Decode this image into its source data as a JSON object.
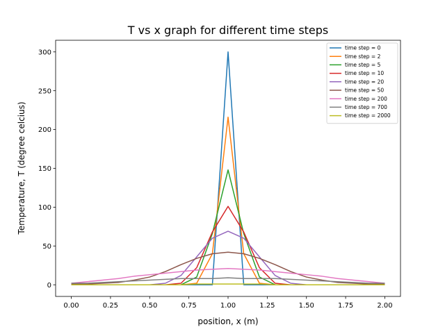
{
  "chart_data": {
    "type": "line",
    "title": "T vs x graph for different time steps",
    "xlabel": "position, x (m)",
    "ylabel": "Temperature, T (degree celcius)",
    "xlim": [
      -0.1,
      2.1
    ],
    "ylim": [
      -15,
      315
    ],
    "xticks": [
      "0.00",
      "0.25",
      "0.50",
      "0.75",
      "1.00",
      "1.25",
      "1.50",
      "1.75",
      "2.00"
    ],
    "yticks": [
      "0",
      "50",
      "100",
      "150",
      "200",
      "250",
      "300"
    ],
    "grid": false,
    "legend_position": "top-right",
    "x": [
      0.0,
      0.1,
      0.2,
      0.3,
      0.4,
      0.5,
      0.6,
      0.7,
      0.8,
      0.9,
      1.0,
      1.1,
      1.2,
      1.3,
      1.4,
      1.5,
      1.6,
      1.7,
      1.8,
      1.9,
      2.0
    ],
    "series": [
      {
        "name": "time step = 0",
        "color": "#1f77b4",
        "values": [
          0,
          0,
          0,
          0,
          0,
          0,
          0,
          0,
          0,
          0,
          300,
          0,
          0,
          0,
          0,
          0,
          0,
          0,
          0,
          0,
          0
        ]
      },
      {
        "name": "time step = 2",
        "color": "#ff7f0e",
        "values": [
          0,
          0,
          0,
          0,
          0,
          0,
          0,
          0,
          2,
          40,
          216,
          40,
          2,
          0,
          0,
          0,
          0,
          0,
          0,
          0,
          0
        ]
      },
      {
        "name": "time step = 5",
        "color": "#2ca02c",
        "values": [
          0,
          0,
          0,
          0,
          0,
          0,
          0,
          0,
          10,
          66,
          148,
          66,
          10,
          0,
          0,
          0,
          0,
          0,
          0,
          0,
          0
        ]
      },
      {
        "name": "time step = 10",
        "color": "#d62728",
        "values": [
          0,
          0,
          0,
          0,
          0,
          0,
          0,
          2,
          22,
          68,
          101,
          68,
          22,
          2,
          0,
          0,
          0,
          0,
          0,
          0,
          0
        ]
      },
      {
        "name": "time step = 20",
        "color": "#9467bd",
        "values": [
          0,
          0,
          0,
          0,
          0,
          0,
          2,
          12,
          36,
          60,
          69,
          60,
          36,
          12,
          2,
          0,
          0,
          0,
          0,
          0,
          0
        ]
      },
      {
        "name": "time step = 50",
        "color": "#8c564b",
        "values": [
          1,
          1,
          2,
          3,
          6,
          10,
          17,
          26,
          34,
          40,
          42,
          40,
          34,
          26,
          17,
          10,
          6,
          3,
          2,
          1,
          1
        ]
      },
      {
        "name": "time step = 200",
        "color": "#e377c2",
        "values": [
          2,
          4,
          6,
          8,
          11,
          13,
          15,
          17,
          19,
          20,
          21,
          20,
          19,
          17,
          15,
          13,
          11,
          8,
          6,
          4,
          2
        ]
      },
      {
        "name": "time step = 700",
        "color": "#7f7f7f",
        "values": [
          2,
          2,
          3,
          4,
          5,
          6,
          7,
          8,
          8,
          8,
          9,
          8,
          8,
          8,
          7,
          6,
          5,
          4,
          3,
          2,
          2
        ]
      },
      {
        "name": "time step = 2000",
        "color": "#bcbd22",
        "values": [
          0,
          0,
          0,
          0,
          0,
          0,
          0,
          0,
          1,
          1,
          1,
          1,
          1,
          0,
          0,
          0,
          0,
          0,
          0,
          0,
          0
        ]
      }
    ]
  }
}
